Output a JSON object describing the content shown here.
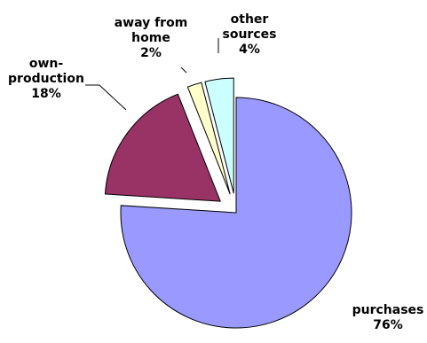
{
  "chart_data": {
    "type": "pie",
    "exploded": true,
    "start_angle_deg": 0,
    "direction": "clockwise",
    "slices": [
      {
        "key": "purchases",
        "label_lines": [
          "purchases"
        ],
        "value_label": "76%",
        "value": 76,
        "color": "#9999ff"
      },
      {
        "key": "own-production",
        "label_lines": [
          "own-",
          "production"
        ],
        "value_label": "18%",
        "value": 18,
        "color": "#993366"
      },
      {
        "key": "away-from-home",
        "label_lines": [
          "away from",
          "home"
        ],
        "value_label": "2%",
        "value": 2,
        "color": "#ffffcc"
      },
      {
        "key": "other-sources",
        "label_lines": [
          "other",
          "sources"
        ],
        "value_label": "4%",
        "value": 4,
        "color": "#ccffff"
      }
    ],
    "outline_color": "#000000",
    "title": "",
    "legend": "none"
  }
}
